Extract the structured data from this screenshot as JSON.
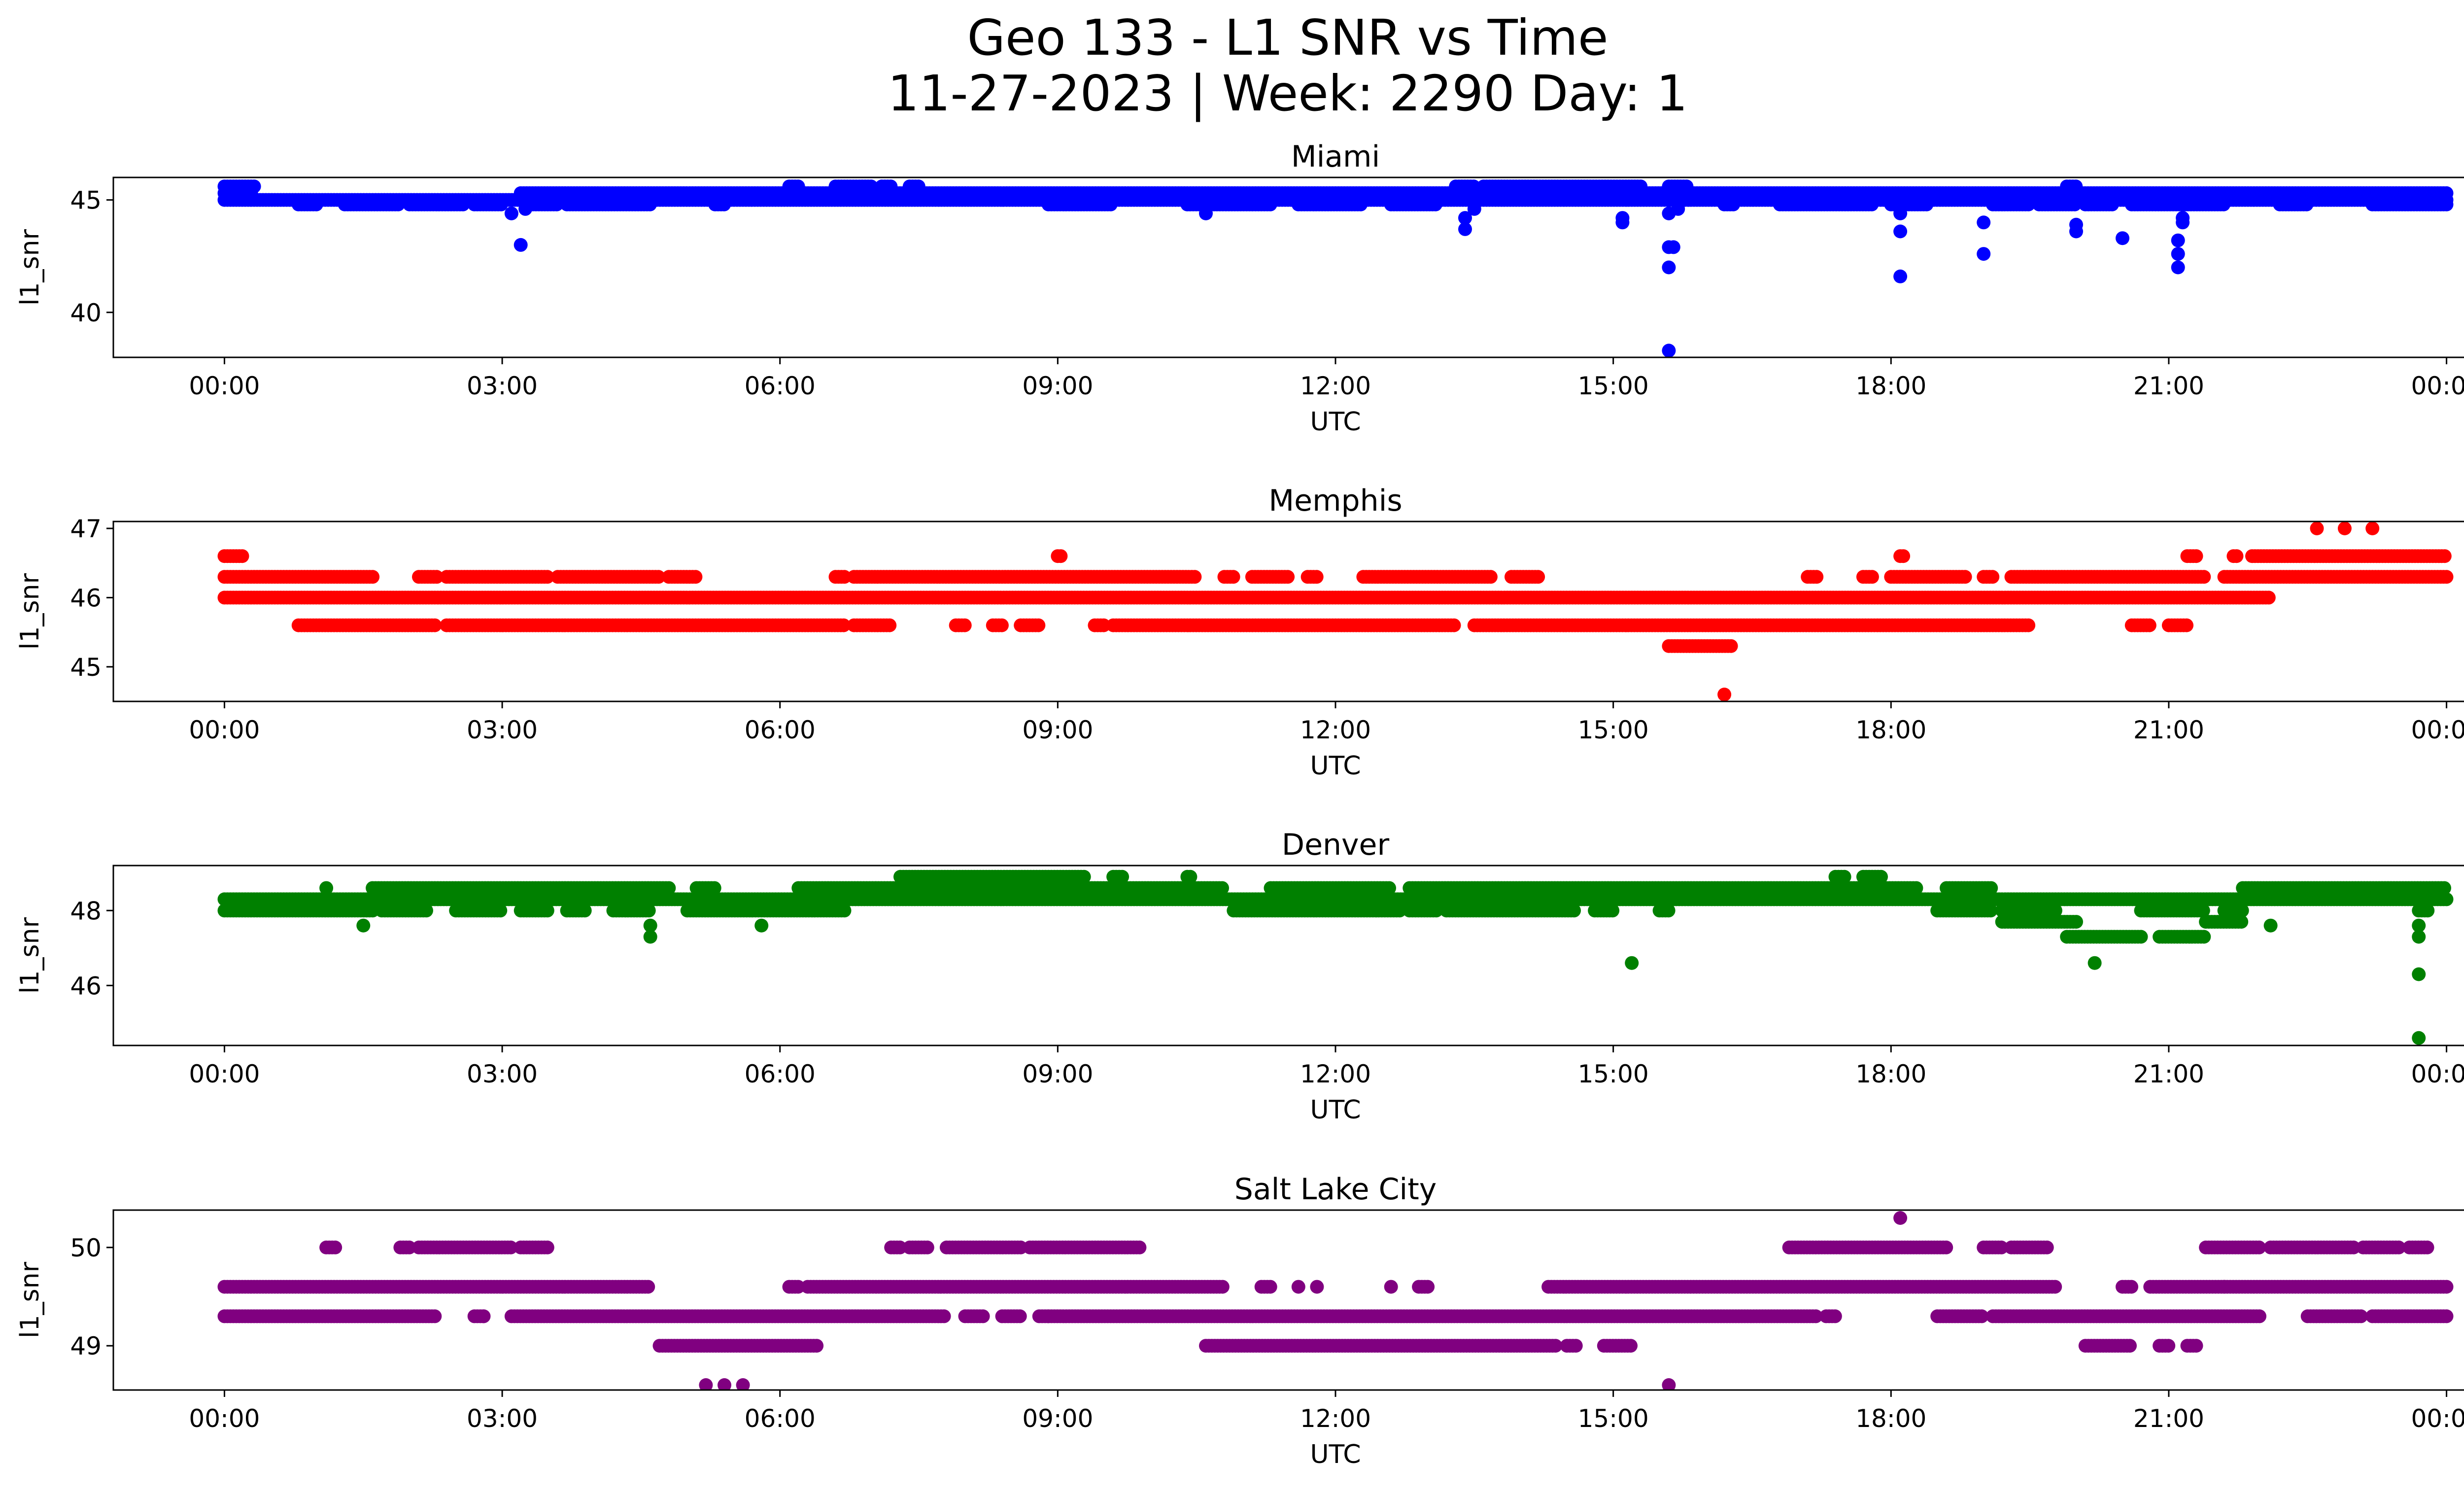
{
  "figure": {
    "title_line1": "Geo 133 - L1 SNR vs Time",
    "title_line2": "11-27-2023 | Week: 2290 Day: 1"
  },
  "chart_data": [
    {
      "type": "scatter",
      "title": "Miami",
      "xlabel": "UTC",
      "ylabel": "l1_snr",
      "color": "#0000ff",
      "x_ticks": [
        "00:00",
        "03:00",
        "06:00",
        "09:00",
        "12:00",
        "15:00",
        "18:00",
        "21:00",
        "00:00"
      ],
      "x_range_hours": [
        -1.2,
        25.2
      ],
      "y_ticks": [
        40,
        45
      ],
      "ylim": [
        38.0,
        46.0
      ],
      "bands": [
        {
          "y": 45.3,
          "ranges": [
            [
              0,
              0.3
            ],
            [
              3.2,
              24
            ]
          ],
          "gaps": [
            [
              12.5,
              12.6
            ]
          ]
        },
        {
          "y": 45.0,
          "ranges": [
            [
              0,
              24
            ]
          ]
        },
        {
          "y": 44.8,
          "ranges": [
            [
              0.8,
              1.0
            ],
            [
              1.3,
              1.9
            ],
            [
              2.0,
              2.6
            ],
            [
              2.7,
              3.0
            ],
            [
              3.3,
              3.6
            ],
            [
              3.7,
              4.6
            ],
            [
              5.3,
              5.4
            ],
            [
              8.9,
              9.6
            ],
            [
              10.4,
              11.3
            ],
            [
              11.6,
              12.3
            ],
            [
              12.6,
              13.1
            ],
            [
              16.2,
              16.3
            ],
            [
              16.8,
              17.8
            ],
            [
              18.0,
              18.4
            ],
            [
              19.1,
              19.5
            ],
            [
              19.6,
              20.0
            ],
            [
              20.1,
              20.4
            ],
            [
              20.6,
              21.6
            ],
            [
              22.2,
              22.5
            ],
            [
              23.2,
              24.0
            ]
          ]
        },
        {
          "y": 45.6,
          "ranges": [
            [
              0,
              0.35
            ],
            [
              6.1,
              6.2
            ],
            [
              6.6,
              7.0
            ],
            [
              7.1,
              7.2
            ],
            [
              7.4,
              7.5
            ],
            [
              13.3,
              13.5
            ],
            [
              13.6,
              15.3
            ],
            [
              15.6,
              15.8
            ],
            [
              19.9,
              20.0
            ]
          ]
        }
      ],
      "extra_points": [
        [
          3.2,
          43.0
        ],
        [
          3.1,
          44.4
        ],
        [
          13.4,
          44.2
        ],
        [
          13.4,
          43.7
        ],
        [
          13.5,
          44.6
        ],
        [
          15.1,
          44.2
        ],
        [
          15.1,
          44.0
        ],
        [
          15.6,
          42.9
        ],
        [
          15.65,
          42.9
        ],
        [
          15.6,
          42.0
        ],
        [
          15.6,
          38.3
        ],
        [
          15.6,
          44.4
        ],
        [
          15.7,
          44.6
        ],
        [
          18.1,
          43.6
        ],
        [
          18.1,
          41.6
        ],
        [
          18.1,
          44.4
        ],
        [
          19.0,
          44.0
        ],
        [
          19.0,
          42.6
        ],
        [
          20.0,
          43.9
        ],
        [
          20.0,
          43.6
        ],
        [
          20.5,
          43.3
        ],
        [
          21.1,
          43.2
        ],
        [
          21.1,
          42.6
        ],
        [
          21.1,
          42.0
        ],
        [
          21.15,
          44.0
        ],
        [
          21.15,
          44.2
        ],
        [
          10.6,
          44.4
        ],
        [
          3.25,
          44.6
        ]
      ]
    },
    {
      "type": "scatter",
      "title": "Memphis",
      "xlabel": "UTC",
      "ylabel": "l1_snr",
      "color": "#ff0000",
      "x_ticks": [
        "00:00",
        "03:00",
        "06:00",
        "09:00",
        "12:00",
        "15:00",
        "18:00",
        "21:00",
        "00:00"
      ],
      "x_range_hours": [
        -1.2,
        25.2
      ],
      "y_ticks": [
        45,
        46,
        47
      ],
      "ylim": [
        44.5,
        47.1
      ],
      "bands": [
        {
          "y": 46.3,
          "ranges": [
            [
              0,
              1.6
            ],
            [
              2.1,
              2.3
            ],
            [
              2.4,
              3.5
            ],
            [
              3.6,
              4.7
            ],
            [
              4.8,
              5.1
            ],
            [
              6.6,
              6.7
            ],
            [
              6.8,
              10.5
            ],
            [
              10.8,
              10.9
            ],
            [
              11.1,
              11.5
            ],
            [
              11.7,
              11.8
            ],
            [
              12.3,
              13.7
            ],
            [
              13.9,
              14.2
            ],
            [
              17.1,
              17.2
            ],
            [
              17.7,
              17.8
            ],
            [
              18.0,
              18.8
            ],
            [
              19.0,
              19.1
            ],
            [
              19.3,
              21.4
            ],
            [
              21.6,
              24
            ]
          ]
        },
        {
          "y": 46.0,
          "ranges": [
            [
              0,
              22.1
            ]
          ]
        },
        {
          "y": 45.6,
          "ranges": [
            [
              0.8,
              2.3
            ],
            [
              2.4,
              6.7
            ],
            [
              6.8,
              7.2
            ],
            [
              7.9,
              8.0
            ],
            [
              8.3,
              8.4
            ],
            [
              8.6,
              8.8
            ],
            [
              9.4,
              9.5
            ],
            [
              9.6,
              13.3
            ],
            [
              13.5,
              19.5
            ],
            [
              20.6,
              20.8
            ],
            [
              21.0,
              21.2
            ]
          ]
        },
        {
          "y": 46.6,
          "ranges": [
            [
              0,
              0.2
            ],
            [
              9.0,
              9.05
            ],
            [
              18.1,
              18.15
            ],
            [
              21.2,
              21.3
            ],
            [
              21.7,
              21.75
            ],
            [
              21.9,
              24
            ]
          ]
        },
        {
          "y": 45.3,
          "ranges": [
            [
              15.6,
              16.3
            ]
          ]
        }
      ],
      "extra_points": [
        [
          16.2,
          44.6
        ],
        [
          22.6,
          47.0
        ],
        [
          22.9,
          47.0
        ],
        [
          23.2,
          47.0
        ]
      ]
    },
    {
      "type": "scatter",
      "title": "Denver",
      "xlabel": "UTC",
      "ylabel": "l1_snr",
      "color": "#008000",
      "x_ticks": [
        "00:00",
        "03:00",
        "06:00",
        "09:00",
        "12:00",
        "15:00",
        "18:00",
        "21:00",
        "00:00"
      ],
      "x_range_hours": [
        -1.2,
        25.2
      ],
      "y_ticks": [
        46,
        48
      ],
      "ylim": [
        44.4,
        49.2
      ],
      "bands": [
        {
          "y": 48.3,
          "ranges": [
            [
              0,
              24
            ]
          ]
        },
        {
          "y": 48.0,
          "ranges": [
            [
              0,
              1.6
            ],
            [
              1.7,
              2.2
            ],
            [
              2.5,
              3.0
            ],
            [
              3.2,
              3.5
            ],
            [
              3.7,
              3.9
            ],
            [
              4.2,
              4.6
            ],
            [
              5.0,
              6.7
            ],
            [
              10.9,
              12.7
            ],
            [
              12.8,
              13.1
            ],
            [
              13.2,
              14.6
            ],
            [
              14.8,
              15.0
            ],
            [
              15.5,
              15.6
            ],
            [
              18.5,
              19.1
            ],
            [
              19.2,
              19.8
            ],
            [
              20.7,
              21.4
            ],
            [
              21.6,
              21.8
            ],
            [
              23.7,
              23.8
            ]
          ]
        },
        {
          "y": 48.6,
          "ranges": [
            [
              1.6,
              4.8
            ],
            [
              5.1,
              5.3
            ],
            [
              6.2,
              10.8
            ],
            [
              11.3,
              12.6
            ],
            [
              12.8,
              18.3
            ],
            [
              18.6,
              19.1
            ],
            [
              21.8,
              24
            ]
          ]
        },
        {
          "y": 48.9,
          "ranges": [
            [
              7.3,
              9.3
            ],
            [
              9.6,
              9.7
            ],
            [
              10.4,
              10.45
            ],
            [
              17.4,
              17.5
            ],
            [
              17.7,
              17.9
            ]
          ]
        },
        {
          "y": 47.7,
          "ranges": [
            [
              19.2,
              20.0
            ],
            [
              21.4,
              21.8
            ]
          ]
        },
        {
          "y": 47.3,
          "ranges": [
            [
              19.9,
              20.7
            ],
            [
              20.9,
              21.4
            ]
          ]
        }
      ],
      "extra_points": [
        [
          1.1,
          48.6
        ],
        [
          1.5,
          47.6
        ],
        [
          4.6,
          47.6
        ],
        [
          4.6,
          47.3
        ],
        [
          5.8,
          47.6
        ],
        [
          15.2,
          46.6
        ],
        [
          20.2,
          46.6
        ],
        [
          22.1,
          47.6
        ],
        [
          23.7,
          47.6
        ],
        [
          23.7,
          47.3
        ],
        [
          23.7,
          46.3
        ],
        [
          23.7,
          44.6
        ]
      ]
    },
    {
      "type": "scatter",
      "title": "Salt Lake City",
      "xlabel": "UTC",
      "ylabel": "l1_snr",
      "color": "#800080",
      "x_ticks": [
        "00:00",
        "03:00",
        "06:00",
        "09:00",
        "12:00",
        "15:00",
        "18:00",
        "21:00",
        "00:00"
      ],
      "x_range_hours": [
        -1.2,
        25.2
      ],
      "y_ticks": [
        49,
        50
      ],
      "ylim": [
        48.55,
        50.38
      ],
      "bands": [
        {
          "y": 49.6,
          "ranges": [
            [
              0,
              4.6
            ],
            [
              6.1,
              6.2
            ],
            [
              6.3,
              10.8
            ],
            [
              11.2,
              11.3
            ],
            [
              12.9,
              13.0
            ],
            [
              14.3,
              19.8
            ],
            [
              20.5,
              20.6
            ],
            [
              20.8,
              21.6
            ],
            [
              21.6,
              24
            ]
          ]
        },
        {
          "y": 49.3,
          "ranges": [
            [
              0,
              2.3
            ],
            [
              2.7,
              2.8
            ],
            [
              3.1,
              7.8
            ],
            [
              8.0,
              8.2
            ],
            [
              8.4,
              8.6
            ],
            [
              8.8,
              8.9
            ],
            [
              8.9,
              17.2
            ],
            [
              17.3,
              17.4
            ],
            [
              18.5,
              19.0
            ],
            [
              19.1,
              22.0
            ],
            [
              22.5,
              23.1
            ],
            [
              23.2,
              24
            ]
          ]
        },
        {
          "y": 50.0,
          "ranges": [
            [
              1.1,
              1.2
            ],
            [
              1.9,
              2.0
            ],
            [
              2.1,
              3.1
            ],
            [
              3.2,
              3.5
            ],
            [
              7.2,
              7.3
            ],
            [
              7.4,
              7.6
            ],
            [
              7.8,
              8.6
            ],
            [
              8.7,
              9.9
            ],
            [
              16.9,
              18.6
            ],
            [
              19.0,
              19.2
            ],
            [
              19.3,
              19.7
            ],
            [
              21.4,
              22.0
            ],
            [
              22.1,
              23.0
            ],
            [
              23.1,
              23.5
            ],
            [
              23.6,
              23.8
            ]
          ]
        },
        {
          "y": 49.0,
          "ranges": [
            [
              4.7,
              6.4
            ],
            [
              10.6,
              14.4
            ],
            [
              14.5,
              14.6
            ],
            [
              14.9,
              15.2
            ],
            [
              20.1,
              20.6
            ],
            [
              20.9,
              21.0
            ],
            [
              21.2,
              21.3
            ]
          ]
        }
      ],
      "extra_points": [
        [
          5.2,
          48.6
        ],
        [
          5.4,
          48.6
        ],
        [
          5.6,
          48.6
        ],
        [
          15.6,
          48.6
        ],
        [
          18.1,
          50.3
        ],
        [
          2.8,
          49.3
        ],
        [
          11.6,
          49.6
        ],
        [
          11.8,
          49.6
        ],
        [
          12.6,
          49.6
        ]
      ]
    }
  ]
}
